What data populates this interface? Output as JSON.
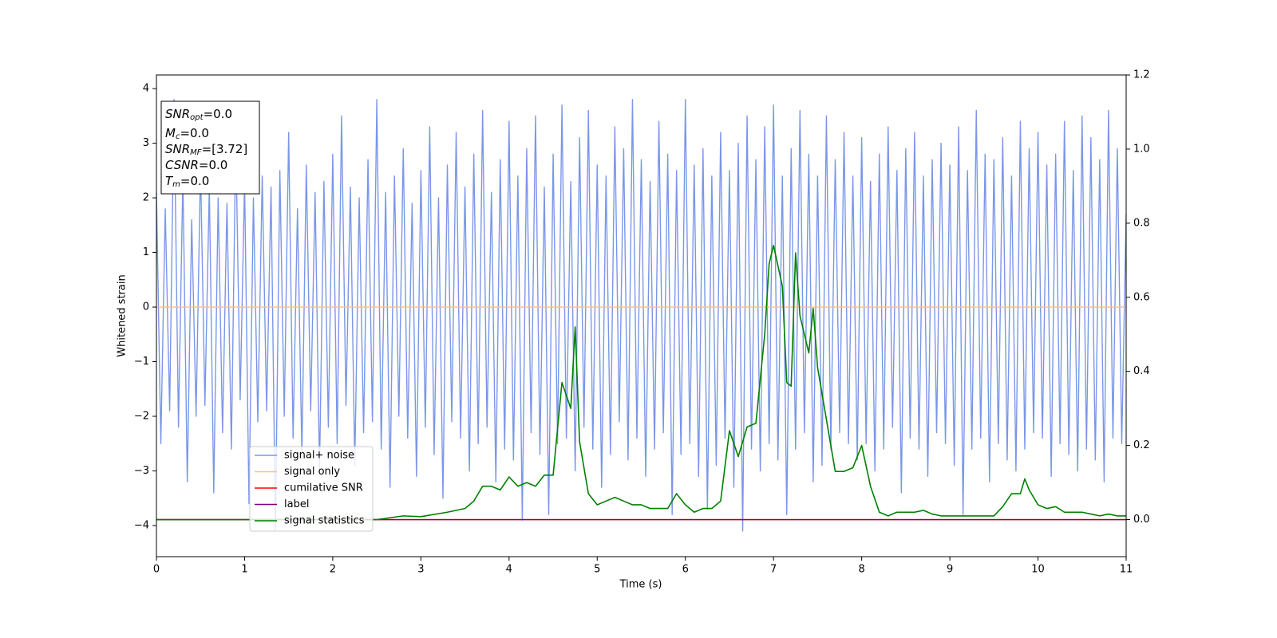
{
  "chart_data": {
    "type": "line",
    "xlabel": "Time (s)",
    "ylabel": "Whitened strain",
    "xlim": [
      0,
      11
    ],
    "xticks": [
      0,
      1,
      2,
      3,
      4,
      5,
      6,
      7,
      8,
      9,
      10,
      11
    ],
    "ylim": [
      -4.57,
      4.25
    ],
    "yticks": [
      {
        "value": -4,
        "label": "−4"
      },
      {
        "value": -3,
        "label": "−3"
      },
      {
        "value": -2,
        "label": "−2"
      },
      {
        "value": -1,
        "label": "−1"
      },
      0,
      1,
      2,
      3,
      4
    ],
    "y2lim": [
      -0.1,
      1.2
    ],
    "y2ticks": [
      {
        "value": 0,
        "label": "0.0"
      },
      {
        "value": 0.2,
        "label": "0.2"
      },
      {
        "value": 0.4,
        "label": "0.4"
      },
      {
        "value": 0.6,
        "label": "0.6"
      },
      {
        "value": 0.8,
        "label": "0.8"
      },
      {
        "value": 1.0,
        "label": "1.0"
      },
      {
        "value": 1.2,
        "label": "1.2"
      }
    ],
    "legend": "lower left",
    "annotation_lines": [
      {
        "text": "SNR",
        "sub": "opt",
        "value": "=0.0"
      },
      {
        "text": "M",
        "sub": "c",
        "value": "=0.0"
      },
      {
        "text": "SNR",
        "sub": "MF",
        "value": "=[3.72]"
      },
      {
        "text": "CSNR",
        "value": "=0.0"
      },
      {
        "text": "T",
        "sub": "m",
        "value": "=0.0"
      }
    ],
    "series": [
      {
        "name": "signal+ noise",
        "color": "#7b96e8",
        "x": [
          0,
          0.05,
          0.1,
          0.15,
          0.2,
          0.25,
          0.3,
          0.35,
          0.4,
          0.45,
          0.5,
          0.55,
          0.6,
          0.65,
          0.7,
          0.75,
          0.8,
          0.85,
          0.9,
          0.95,
          1,
          1.05,
          1.1,
          1.15,
          1.2,
          1.25,
          1.3,
          1.35,
          1.4,
          1.45,
          1.5,
          1.55,
          1.6,
          1.65,
          1.7,
          1.75,
          1.8,
          1.85,
          1.9,
          1.95,
          2,
          2.05,
          2.1,
          2.15,
          2.2,
          2.25,
          2.3,
          2.35,
          2.4,
          2.45,
          2.5,
          2.55,
          2.6,
          2.65,
          2.7,
          2.75,
          2.8,
          2.85,
          2.9,
          2.95,
          3,
          3.05,
          3.1,
          3.15,
          3.2,
          3.25,
          3.3,
          3.35,
          3.4,
          3.45,
          3.5,
          3.55,
          3.6,
          3.65,
          3.7,
          3.75,
          3.8,
          3.85,
          3.9,
          3.95,
          4,
          4.05,
          4.1,
          4.15,
          4.2,
          4.25,
          4.3,
          4.35,
          4.4,
          4.45,
          4.5,
          4.55,
          4.6,
          4.65,
          4.7,
          4.75,
          4.8,
          4.85,
          4.9,
          4.95,
          5,
          5.05,
          5.1,
          5.15,
          5.2,
          5.25,
          5.3,
          5.35,
          5.4,
          5.45,
          5.5,
          5.55,
          5.6,
          5.65,
          5.7,
          5.75,
          5.8,
          5.85,
          5.9,
          5.95,
          6,
          6.05,
          6.1,
          6.15,
          6.2,
          6.25,
          6.3,
          6.35,
          6.4,
          6.45,
          6.5,
          6.55,
          6.6,
          6.65,
          6.7,
          6.75,
          6.8,
          6.85,
          6.9,
          6.95,
          7,
          7.05,
          7.1,
          7.15,
          7.2,
          7.25,
          7.3,
          7.35,
          7.4,
          7.45,
          7.5,
          7.55,
          7.6,
          7.65,
          7.7,
          7.75,
          7.8,
          7.85,
          7.9,
          7.95,
          8,
          8.05,
          8.1,
          8.15,
          8.2,
          8.25,
          8.3,
          8.35,
          8.4,
          8.45,
          8.5,
          8.55,
          8.6,
          8.65,
          8.7,
          8.75,
          8.8,
          8.85,
          8.9,
          8.95,
          9,
          9.05,
          9.1,
          9.15,
          9.2,
          9.25,
          9.3,
          9.35,
          9.4,
          9.45,
          9.5,
          9.55,
          9.6,
          9.65,
          9.7,
          9.75,
          9.8,
          9.85,
          9.9,
          9.95,
          10,
          10.05,
          10.1,
          10.15,
          10.2,
          10.25,
          10.3,
          10.35,
          10.4,
          10.45,
          10.5,
          10.55,
          10.6,
          10.65,
          10.7,
          10.75,
          10.8,
          10.85,
          10.9,
          10.95,
          11
        ],
        "values": [
          2.1,
          -2.5,
          1.8,
          -1.9,
          3.8,
          -2.2,
          2.4,
          -3.2,
          1.6,
          -2.0,
          2.6,
          -1.8,
          2.2,
          -3.4,
          2.0,
          -2.3,
          1.9,
          -2.6,
          3.1,
          -1.7,
          2.3,
          -3.6,
          2.0,
          -2.1,
          2.4,
          -1.9,
          2.2,
          -4.1,
          2.5,
          -2.0,
          3.2,
          -2.4,
          1.8,
          -2.7,
          2.6,
          -1.9,
          2.1,
          -3.0,
          2.3,
          -2.2,
          2.8,
          -2.5,
          3.5,
          -1.8,
          2.2,
          -2.9,
          2.0,
          -2.3,
          2.7,
          -2.1,
          3.8,
          -2.6,
          2.1,
          -3.3,
          2.4,
          -2.0,
          2.9,
          -2.4,
          1.9,
          -3.1,
          2.5,
          -2.2,
          3.3,
          -2.7,
          2.0,
          -3.5,
          2.6,
          -2.1,
          3.2,
          -2.4,
          2.2,
          -3.0,
          2.8,
          -2.5,
          3.6,
          -2.2,
          2.1,
          -3.2,
          2.7,
          -2.6,
          3.4,
          -2.8,
          2.4,
          -3.9,
          2.9,
          -2.3,
          3.5,
          -2.7,
          2.2,
          -3.8,
          2.8,
          -2.5,
          3.7,
          -2.4,
          2.3,
          -3.0,
          3.1,
          -2.2,
          3.6,
          -2.6,
          2.6,
          -3.3,
          2.4,
          -2.7,
          3.3,
          -2.1,
          2.9,
          -2.8,
          3.8,
          -2.4,
          2.7,
          -3.1,
          2.3,
          -2.6,
          3.4,
          -2.3,
          2.8,
          -3.8,
          2.5,
          -2.7,
          3.8,
          -2.5,
          2.6,
          -3.1,
          2.9,
          -3.7,
          2.4,
          -2.9,
          3.2,
          -2.4,
          2.5,
          -3.3,
          3.0,
          -4.1,
          3.5,
          -2.6,
          2.7,
          -3.0,
          3.3,
          -2.5,
          3.7,
          -2.8,
          2.4,
          -3.8,
          2.9,
          -2.6,
          3.6,
          -2.3,
          2.8,
          -3.2,
          2.4,
          -2.9,
          3.5,
          -2.6,
          2.7,
          -2.3,
          3.2,
          -2.5,
          2.4,
          -2.8,
          3.1,
          -2.5,
          2.3,
          -3.0,
          2.8,
          -2.6,
          3.3,
          -2.2,
          2.5,
          -3.4,
          2.9,
          -2.4,
          3.2,
          -2.6,
          2.4,
          -3.1,
          2.7,
          -2.3,
          3.0,
          -2.5,
          2.6,
          -2.9,
          3.3,
          -3.8,
          2.5,
          -2.6,
          3.6,
          -2.4,
          2.8,
          -3.2,
          2.7,
          -2.5,
          3.1,
          -2.8,
          2.4,
          -3.0,
          3.4,
          -2.6,
          2.9,
          -2.3,
          3.2,
          -2.4,
          2.6,
          -3.1,
          2.8,
          -2.5,
          3.4,
          -2.7,
          2.5,
          -3.0,
          3.5,
          -2.6,
          3.1,
          -2.8,
          2.7,
          -3.2,
          3.6,
          -2.4,
          2.9,
          -2.5,
          1.7
        ]
      },
      {
        "name": "signal only",
        "color": "#f7c27c",
        "x": [
          0,
          11
        ],
        "values": [
          0,
          0
        ]
      },
      {
        "name": "cumilative SNR",
        "color": "#ff0000",
        "axis": "y2",
        "x": [
          0,
          11
        ],
        "values": [
          0,
          0
        ]
      },
      {
        "name": "label",
        "color": "#800080",
        "axis": "y2",
        "x": [
          0,
          11
        ],
        "values": [
          0,
          0
        ]
      },
      {
        "name": "signal statistics",
        "color": "#008000",
        "axis": "y2",
        "x": [
          0,
          0.5,
          1,
          1.5,
          2,
          2.5,
          2.8,
          3.0,
          3.3,
          3.5,
          3.6,
          3.7,
          3.8,
          3.9,
          4.0,
          4.1,
          4.2,
          4.3,
          4.4,
          4.5,
          4.6,
          4.7,
          4.75,
          4.8,
          4.9,
          5.0,
          5.1,
          5.2,
          5.3,
          5.4,
          5.5,
          5.6,
          5.7,
          5.8,
          5.9,
          6.0,
          6.1,
          6.2,
          6.3,
          6.4,
          6.5,
          6.6,
          6.7,
          6.8,
          6.9,
          6.95,
          7.0,
          7.1,
          7.15,
          7.2,
          7.25,
          7.3,
          7.4,
          7.45,
          7.5,
          7.6,
          7.7,
          7.8,
          7.9,
          8.0,
          8.1,
          8.2,
          8.3,
          8.4,
          8.5,
          8.6,
          8.7,
          8.8,
          8.9,
          9.5,
          9.6,
          9.7,
          9.8,
          9.85,
          9.9,
          10.0,
          10.1,
          10.2,
          10.3,
          10.4,
          10.5,
          10.6,
          10.7,
          10.8,
          10.9,
          11.0
        ],
        "values": [
          0,
          0,
          0,
          0,
          0,
          0,
          0.01,
          0.008,
          0.02,
          0.03,
          0.05,
          0.09,
          0.09,
          0.08,
          0.115,
          0.09,
          0.1,
          0.09,
          0.12,
          0.12,
          0.37,
          0.3,
          0.52,
          0.21,
          0.07,
          0.04,
          0.05,
          0.06,
          0.05,
          0.04,
          0.04,
          0.03,
          0.03,
          0.03,
          0.07,
          0.04,
          0.02,
          0.03,
          0.03,
          0.05,
          0.24,
          0.17,
          0.25,
          0.26,
          0.5,
          0.69,
          0.74,
          0.63,
          0.37,
          0.36,
          0.72,
          0.55,
          0.45,
          0.57,
          0.41,
          0.27,
          0.13,
          0.13,
          0.14,
          0.2,
          0.09,
          0.02,
          0.01,
          0.02,
          0.02,
          0.02,
          0.025,
          0.015,
          0.01,
          0.01,
          0.035,
          0.07,
          0.07,
          0.11,
          0.08,
          0.04,
          0.03,
          0.035,
          0.02,
          0.02,
          0.02,
          0.015,
          0.01,
          0.015,
          0.01,
          0.01
        ]
      }
    ]
  }
}
